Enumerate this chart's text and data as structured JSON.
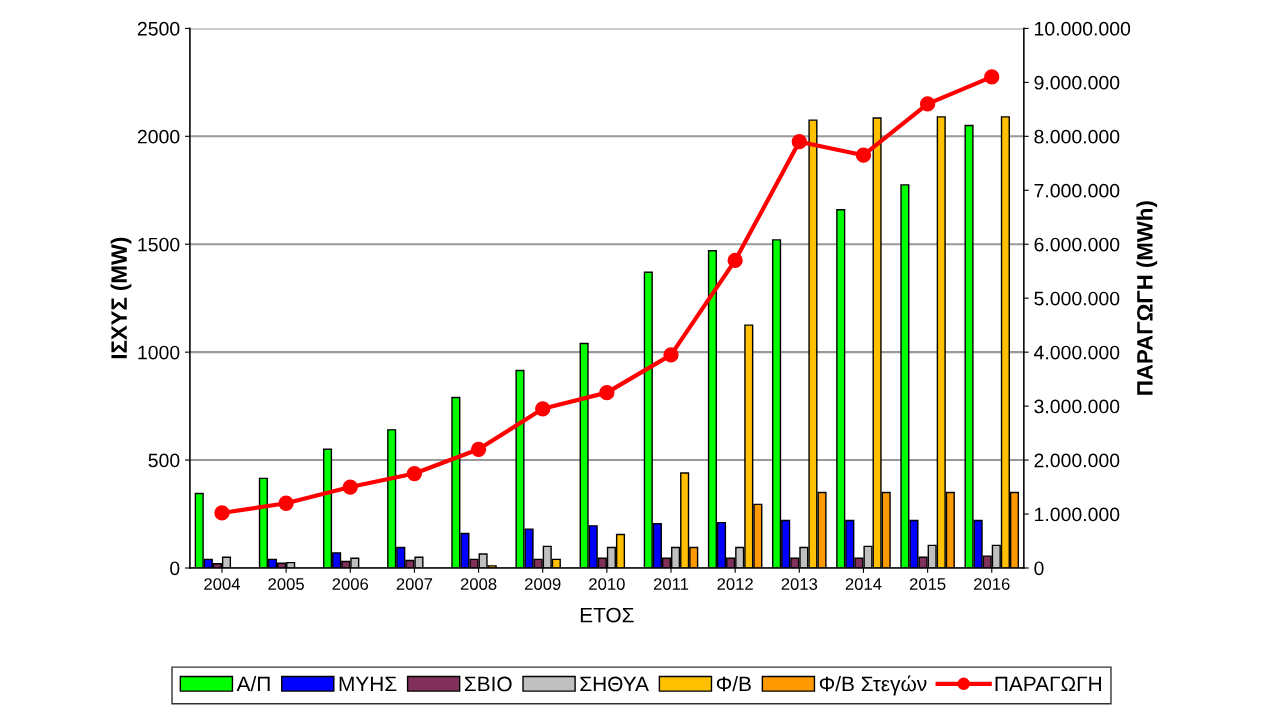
{
  "chart_data": {
    "type": "bar",
    "xlabel": "ΕΤΟΣ",
    "ylabel": "ΙΣΧΥΣ (MW)",
    "y2label": "ΠΑΡΑΓΩΓΗ (MWh)",
    "categories": [
      "2004",
      "2005",
      "2006",
      "2007",
      "2008",
      "2009",
      "2010",
      "2011",
      "2012",
      "2013",
      "2014",
      "2015",
      "2016"
    ],
    "series": [
      {
        "name": "Α/Π",
        "color": "#00ff00",
        "values": [
          345,
          415,
          550,
          640,
          790,
          915,
          1040,
          1370,
          1470,
          1520,
          1660,
          1775,
          2050
        ]
      },
      {
        "name": "ΜΥΗΣ",
        "color": "#0000ff",
        "values": [
          40,
          40,
          70,
          95,
          160,
          180,
          195,
          205,
          210,
          220,
          220,
          220,
          220
        ]
      },
      {
        "name": "ΣΒΙΟ",
        "color": "#80305a",
        "values": [
          20,
          22,
          30,
          35,
          40,
          40,
          45,
          45,
          45,
          45,
          45,
          50,
          55
        ]
      },
      {
        "name": "ΣΗΘΥΑ",
        "color": "#c0c0c0",
        "values": [
          50,
          25,
          45,
          50,
          65,
          100,
          95,
          95,
          95,
          95,
          100,
          105,
          105
        ]
      },
      {
        "name": "Φ/Β",
        "color": "#ffc000",
        "values": [
          null,
          null,
          null,
          null,
          10,
          40,
          155,
          440,
          1125,
          2075,
          2085,
          2090,
          2090
        ]
      },
      {
        "name": "Φ/Β Στεγών",
        "color": "#ff9900",
        "values": [
          null,
          null,
          null,
          null,
          null,
          null,
          null,
          95,
          295,
          350,
          350,
          350,
          350
        ]
      },
      {
        "name": "ΠΑΡΑΓΩΓΗ",
        "color": "#ff0000",
        "type": "line",
        "axis": "y2",
        "marker": "circle",
        "values": [
          1020000,
          1200000,
          1500000,
          1750000,
          2200000,
          2950000,
          3250000,
          3950000,
          5700000,
          7900000,
          7650000,
          8600000,
          9100000
        ]
      }
    ],
    "ylim": [
      0,
      2500
    ],
    "yticks": [
      0,
      500,
      1000,
      1500,
      2000,
      2500
    ],
    "y2lim": [
      0,
      10000000
    ],
    "y2ticks": [
      {
        "value": 0,
        "label": "0"
      },
      {
        "value": 1000000,
        "label": "1.000.000"
      },
      {
        "value": 2000000,
        "label": "2.000.000"
      },
      {
        "value": 3000000,
        "label": "3.000.000"
      },
      {
        "value": 4000000,
        "label": "4.000.000"
      },
      {
        "value": 5000000,
        "label": "5.000.000"
      },
      {
        "value": 6000000,
        "label": "6.000.000"
      },
      {
        "value": 7000000,
        "label": "7.000.000"
      },
      {
        "value": 8000000,
        "label": "8.000.000"
      },
      {
        "value": 9000000,
        "label": "9.000.000"
      },
      {
        "value": 10000000,
        "label": "10.000.000"
      }
    ],
    "grid": "y",
    "legend": "bottom"
  }
}
